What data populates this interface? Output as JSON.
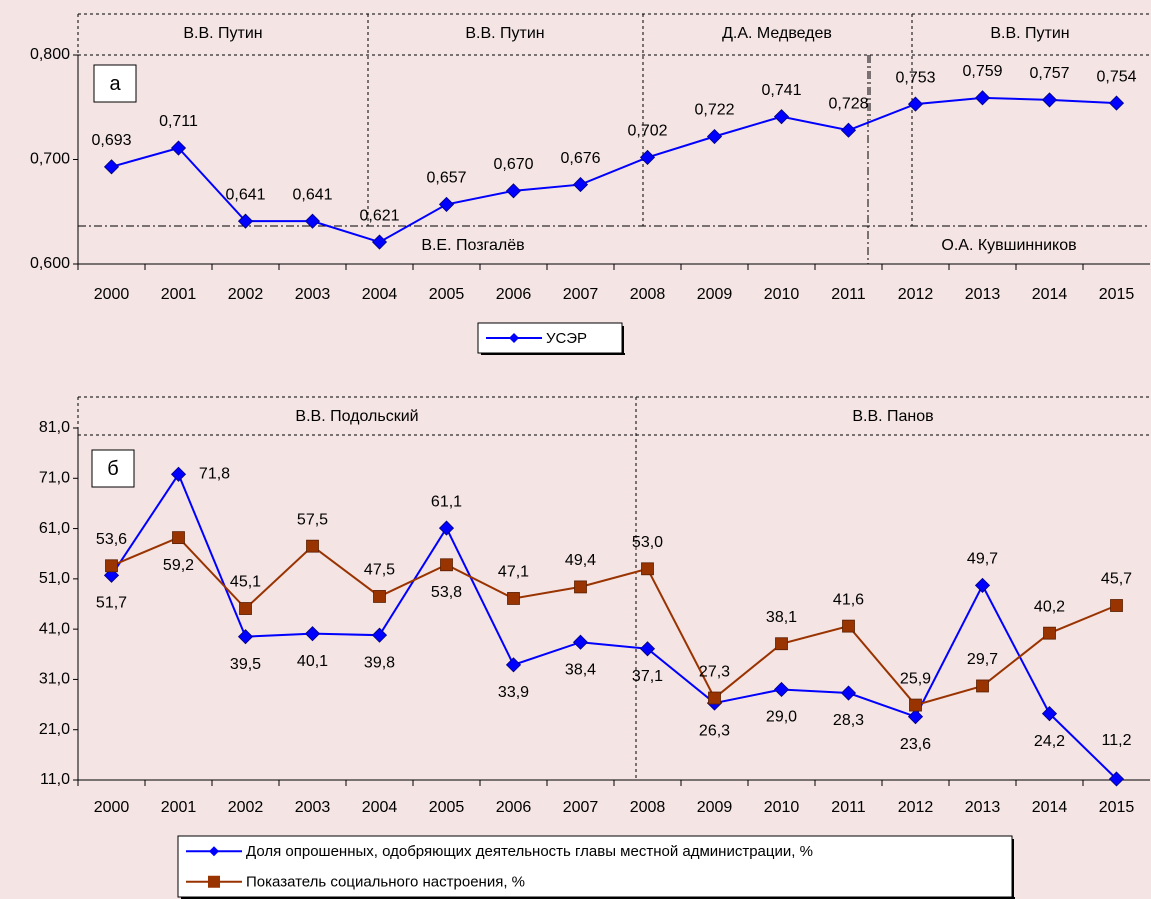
{
  "chart_data": [
    {
      "type": "line",
      "panel": "а",
      "categories": [
        "2000",
        "2001",
        "2002",
        "2003",
        "2004",
        "2005",
        "2006",
        "2007",
        "2008",
        "2009",
        "2010",
        "2011",
        "2012",
        "2013",
        "2014",
        "2015"
      ],
      "series": [
        {
          "name": "УСЭР",
          "color": "#0000ff",
          "marker": "diamond",
          "values": [
            0.693,
            0.711,
            0.641,
            0.641,
            0.621,
            0.657,
            0.67,
            0.676,
            0.702,
            0.722,
            0.741,
            0.728,
            0.753,
            0.759,
            0.757,
            0.754
          ],
          "value_labels": [
            "0,693",
            "0,711",
            "0,641",
            "0,641",
            "0,621",
            "0,657",
            "0,670",
            "0,676",
            "0,702",
            "0,722",
            "0,741",
            "0,728",
            "0,753",
            "0,759",
            "0,757",
            "0,754"
          ]
        }
      ],
      "ylim": [
        0.6,
        0.8
      ],
      "yticks": [
        {
          "value": 0.6,
          "label": "0,600"
        },
        {
          "value": 0.7,
          "label": "0,700"
        },
        {
          "value": 0.8,
          "label": "0,800"
        }
      ],
      "grid": false,
      "legend": "bottom",
      "annotations": [
        "В.В. Путин",
        "В.В. Путин",
        "Д.А. Медведев",
        "В.В. Путин",
        "В.Е. Позгалёв",
        "О.А. Кувшинников"
      ]
    },
    {
      "type": "line",
      "panel": "б",
      "categories": [
        "2000",
        "2001",
        "2002",
        "2003",
        "2004",
        "2005",
        "2006",
        "2007",
        "2008",
        "2009",
        "2010",
        "2011",
        "2012",
        "2013",
        "2014",
        "2015"
      ],
      "series": [
        {
          "name": "Доля опрошенных, одобряющих деятельность главы местной администрации, %",
          "color": "#0000ff",
          "marker": "diamond",
          "values": [
            51.7,
            71.8,
            39.5,
            40.1,
            39.8,
            61.1,
            33.9,
            38.4,
            37.1,
            26.3,
            29.0,
            28.3,
            23.6,
            49.7,
            24.2,
            11.2
          ],
          "value_labels": [
            "51,7",
            "71,8",
            "39,5",
            "40,1",
            "39,8",
            "61,1",
            "33,9",
            "38,4",
            "37,1",
            "26,3",
            "29,0",
            "28,3",
            "23,6",
            "49,7",
            "24,2",
            "11,2"
          ]
        },
        {
          "name": "Показатель социального настроения, %",
          "color": "#993300",
          "marker": "square",
          "values": [
            53.6,
            59.2,
            45.1,
            57.5,
            47.5,
            53.8,
            47.1,
            49.4,
            53.0,
            27.3,
            38.1,
            41.6,
            25.9,
            29.7,
            40.2,
            45.7
          ],
          "value_labels": [
            "53,6",
            "59,2",
            "45,1",
            "57,5",
            "47,5",
            "53,8",
            "47,1",
            "49,4",
            "53,0",
            "27,3",
            "38,1",
            "41,6",
            "25,9",
            "29,7",
            "40,2",
            "45,7"
          ]
        }
      ],
      "ylim": [
        11,
        81
      ],
      "yticks": [
        {
          "value": 11,
          "label": "11,0"
        },
        {
          "value": 21,
          "label": "21,0"
        },
        {
          "value": 31,
          "label": "31,0"
        },
        {
          "value": 41,
          "label": "41,0"
        },
        {
          "value": 51,
          "label": "51,0"
        },
        {
          "value": 61,
          "label": "61,0"
        },
        {
          "value": 71,
          "label": "71,0"
        },
        {
          "value": 81,
          "label": "81,0"
        }
      ],
      "grid": false,
      "legend": "bottom",
      "annotations": [
        "В.В. Подольский",
        "В.В. Панов"
      ]
    }
  ]
}
